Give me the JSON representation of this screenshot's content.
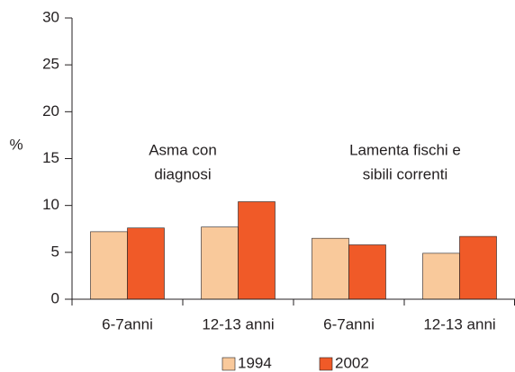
{
  "chart_data": {
    "type": "bar",
    "y_label": "%",
    "categories": [
      "6-7anni",
      "12-13 anni",
      "6-7anni",
      "12-13 anni"
    ],
    "series": [
      {
        "name": "1994",
        "color": "#f9c99b",
        "values": [
          7.2,
          7.7,
          6.5,
          4.9
        ]
      },
      {
        "name": "2002",
        "color": "#f05a28",
        "values": [
          7.6,
          10.4,
          5.8,
          6.7
        ]
      }
    ],
    "annotations": [
      [
        "Asma con",
        "diagnosi"
      ],
      [
        "Lamenta fischi e",
        "sibili correnti"
      ]
    ],
    "ylim": [
      0,
      30
    ],
    "yticks": [
      0,
      5,
      10,
      15,
      20,
      25,
      30
    ],
    "grid": false,
    "legend": "bottom"
  }
}
